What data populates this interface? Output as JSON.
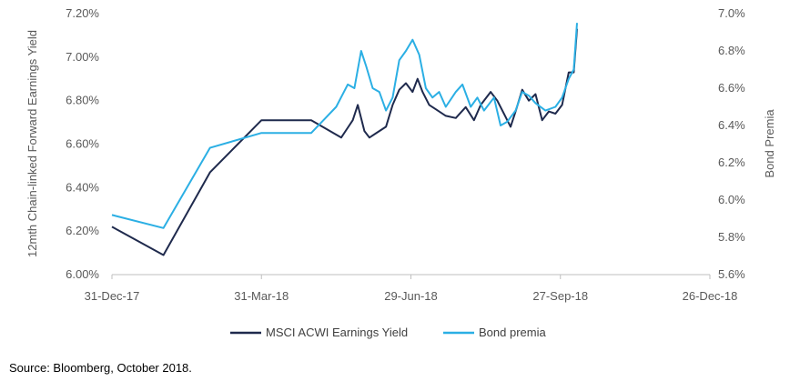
{
  "chart_data": {
    "type": "line",
    "x_axis": {
      "type": "date",
      "range": [
        "2017-12-31",
        "2018-12-26"
      ],
      "tick_labels": [
        "31-Dec-17",
        "31-Mar-18",
        "29-Jun-18",
        "27-Sep-18",
        "26-Dec-18"
      ]
    },
    "y_left": {
      "label": "12mth Chain-linked Forward Earnings Yield",
      "range": [
        6.0,
        7.2
      ],
      "unit": "%",
      "tick_labels": [
        "6.00%",
        "6.20%",
        "6.40%",
        "6.60%",
        "6.80%",
        "7.00%",
        "7.20%"
      ]
    },
    "y_right": {
      "label": "Bond Premia",
      "range": [
        5.6,
        7.0
      ],
      "unit": "%",
      "tick_labels": [
        "5.6%",
        "5.8%",
        "6.0%",
        "6.2%",
        "6.4%",
        "6.6%",
        "6.8%",
        "7.0%"
      ]
    },
    "grid": false,
    "legend": "bottom",
    "series": [
      {
        "name": "MSCI ACWI Earnings Yield",
        "axis": "left",
        "color": "#1f2a4d",
        "points": [
          [
            "2017-12-31",
            6.22
          ],
          [
            "2018-01-31",
            6.09
          ],
          [
            "2018-02-28",
            6.47
          ],
          [
            "2018-03-31",
            6.71
          ],
          [
            "2018-04-30",
            6.71
          ],
          [
            "2018-05-18",
            6.63
          ],
          [
            "2018-05-25",
            6.71
          ],
          [
            "2018-05-28",
            6.78
          ],
          [
            "2018-06-01",
            6.66
          ],
          [
            "2018-06-04",
            6.63
          ],
          [
            "2018-06-08",
            6.65
          ],
          [
            "2018-06-14",
            6.68
          ],
          [
            "2018-06-18",
            6.78
          ],
          [
            "2018-06-22",
            6.85
          ],
          [
            "2018-06-26",
            6.88
          ],
          [
            "2018-06-30",
            6.84
          ],
          [
            "2018-07-03",
            6.9
          ],
          [
            "2018-07-06",
            6.84
          ],
          [
            "2018-07-10",
            6.78
          ],
          [
            "2018-07-14",
            6.76
          ],
          [
            "2018-07-20",
            6.73
          ],
          [
            "2018-07-26",
            6.72
          ],
          [
            "2018-08-01",
            6.77
          ],
          [
            "2018-08-06",
            6.71
          ],
          [
            "2018-08-10",
            6.78
          ],
          [
            "2018-08-16",
            6.84
          ],
          [
            "2018-08-20",
            6.8
          ],
          [
            "2018-08-24",
            6.74
          ],
          [
            "2018-08-28",
            6.68
          ],
          [
            "2018-08-31",
            6.75
          ],
          [
            "2018-09-04",
            6.85
          ],
          [
            "2018-09-08",
            6.8
          ],
          [
            "2018-09-12",
            6.83
          ],
          [
            "2018-09-16",
            6.71
          ],
          [
            "2018-09-20",
            6.75
          ],
          [
            "2018-09-24",
            6.74
          ],
          [
            "2018-09-28",
            6.78
          ],
          [
            "2018-10-02",
            6.93
          ],
          [
            "2018-10-05",
            6.93
          ],
          [
            "2018-10-07",
            7.13
          ]
        ]
      },
      {
        "name": "Bond premia",
        "axis": "right",
        "color": "#2bafe4",
        "points": [
          [
            "2017-12-31",
            5.92
          ],
          [
            "2018-01-31",
            5.85
          ],
          [
            "2018-02-28",
            6.28
          ],
          [
            "2018-03-31",
            6.36
          ],
          [
            "2018-04-30",
            6.36
          ],
          [
            "2018-05-15",
            6.5
          ],
          [
            "2018-05-22",
            6.62
          ],
          [
            "2018-05-26",
            6.6
          ],
          [
            "2018-05-30",
            6.8
          ],
          [
            "2018-06-02",
            6.72
          ],
          [
            "2018-06-06",
            6.6
          ],
          [
            "2018-06-10",
            6.58
          ],
          [
            "2018-06-14",
            6.48
          ],
          [
            "2018-06-18",
            6.55
          ],
          [
            "2018-06-22",
            6.75
          ],
          [
            "2018-06-26",
            6.8
          ],
          [
            "2018-06-30",
            6.86
          ],
          [
            "2018-07-04",
            6.78
          ],
          [
            "2018-07-08",
            6.6
          ],
          [
            "2018-07-12",
            6.55
          ],
          [
            "2018-07-16",
            6.58
          ],
          [
            "2018-07-20",
            6.5
          ],
          [
            "2018-07-26",
            6.58
          ],
          [
            "2018-07-30",
            6.62
          ],
          [
            "2018-08-04",
            6.5
          ],
          [
            "2018-08-08",
            6.55
          ],
          [
            "2018-08-12",
            6.48
          ],
          [
            "2018-08-18",
            6.55
          ],
          [
            "2018-08-22",
            6.4
          ],
          [
            "2018-08-26",
            6.42
          ],
          [
            "2018-08-31",
            6.48
          ],
          [
            "2018-09-04",
            6.58
          ],
          [
            "2018-09-08",
            6.56
          ],
          [
            "2018-09-12",
            6.52
          ],
          [
            "2018-09-18",
            6.48
          ],
          [
            "2018-09-24",
            6.5
          ],
          [
            "2018-09-28",
            6.55
          ],
          [
            "2018-10-02",
            6.65
          ],
          [
            "2018-10-05",
            6.7
          ],
          [
            "2018-10-07",
            6.95
          ]
        ]
      }
    ]
  },
  "source_note": "Source: Bloomberg, October 2018."
}
